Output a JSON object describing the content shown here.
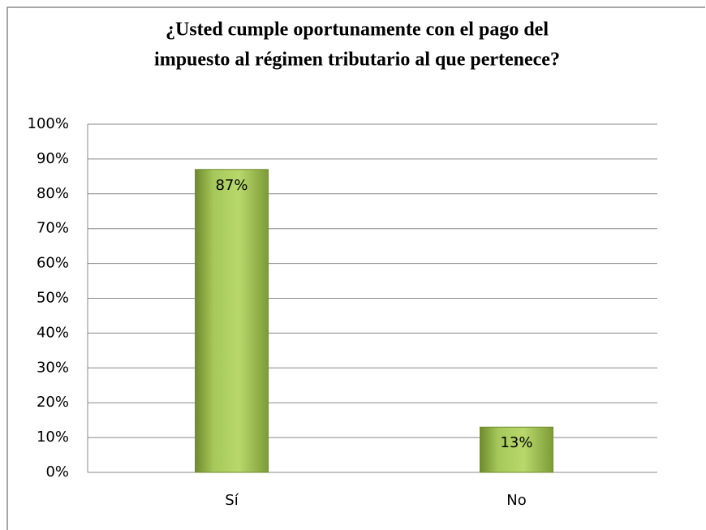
{
  "chart_data": {
    "type": "bar",
    "title": [
      "¿Usted cumple oportunamente con el pago del",
      "impuesto al régimen tributario al que pertenece?"
    ],
    "categories": [
      "Sí",
      "No"
    ],
    "values": [
      87,
      13
    ],
    "value_labels": [
      "87%",
      "13%"
    ],
    "color": "#9bbb59",
    "ylim": [
      0,
      100
    ],
    "yticks": [
      {
        "value": 0,
        "label": "0%"
      },
      {
        "value": 10,
        "label": "10%"
      },
      {
        "value": 20,
        "label": "20%"
      },
      {
        "value": 30,
        "label": "30%"
      },
      {
        "value": 40,
        "label": "40%"
      },
      {
        "value": 50,
        "label": "50%"
      },
      {
        "value": 60,
        "label": "60%"
      },
      {
        "value": 70,
        "label": "70%"
      },
      {
        "value": 80,
        "label": "80%"
      },
      {
        "value": 90,
        "label": "90%"
      },
      {
        "value": 100,
        "label": "100%"
      }
    ],
    "grid": true
  }
}
